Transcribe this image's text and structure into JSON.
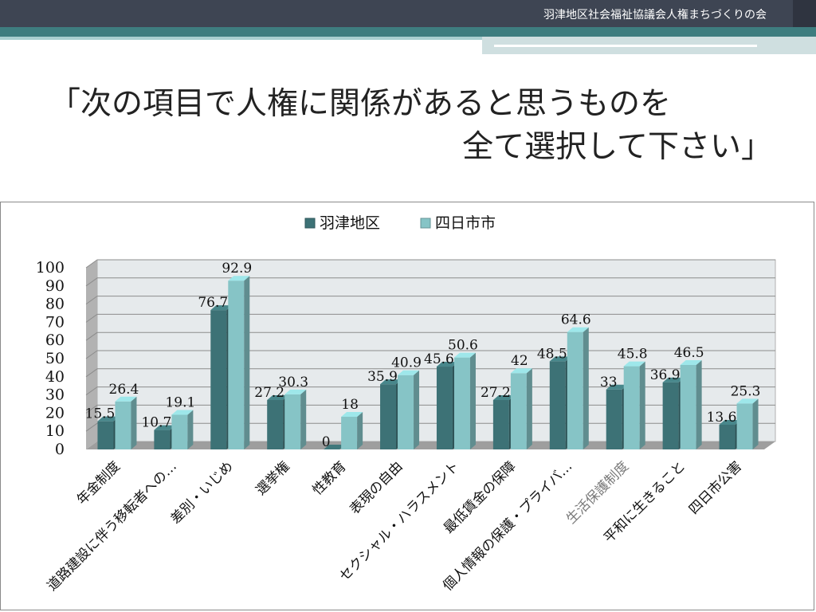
{
  "header": {
    "organization": "羽津地区社会福祉協議会人権まちづくりの会"
  },
  "slide": {
    "title_line1": "「次の項目で人権に関係があると思うものを",
    "title_line2": "全て選択して下さい」"
  },
  "colors": {
    "topbar": "#3e4553",
    "accent_teal": "#3e7d7f",
    "series1": "#3d7276",
    "series2": "#86c4c6"
  },
  "chart_data": {
    "type": "bar",
    "categories": [
      "年金制度",
      "道路建設に伴う移転者への…",
      "差別・いじめ",
      "選挙権",
      "性教育",
      "表現の自由",
      "セクシャル・ハラスメント",
      "最低賃金の保障",
      "個人情報の保護・プライバ…",
      "生活保護制度",
      "平和に生きること",
      "四日市公害"
    ],
    "series": [
      {
        "name": "羽津地区",
        "values": [
          15.5,
          10.7,
          76.7,
          27.2,
          0,
          35.9,
          45.6,
          27.2,
          48.5,
          33,
          36.9,
          13.6
        ]
      },
      {
        "name": "四日市市",
        "values": [
          26.4,
          19.1,
          92.9,
          30.3,
          18,
          40.9,
          50.6,
          42,
          64.6,
          45.8,
          46.5,
          25.3
        ]
      }
    ],
    "ylim": [
      0,
      100
    ],
    "yticks": [
      0,
      10,
      20,
      30,
      40,
      50,
      60,
      70,
      80,
      90,
      100
    ],
    "legend_position": "top",
    "grid": true,
    "style": "3d-clustered-column"
  }
}
